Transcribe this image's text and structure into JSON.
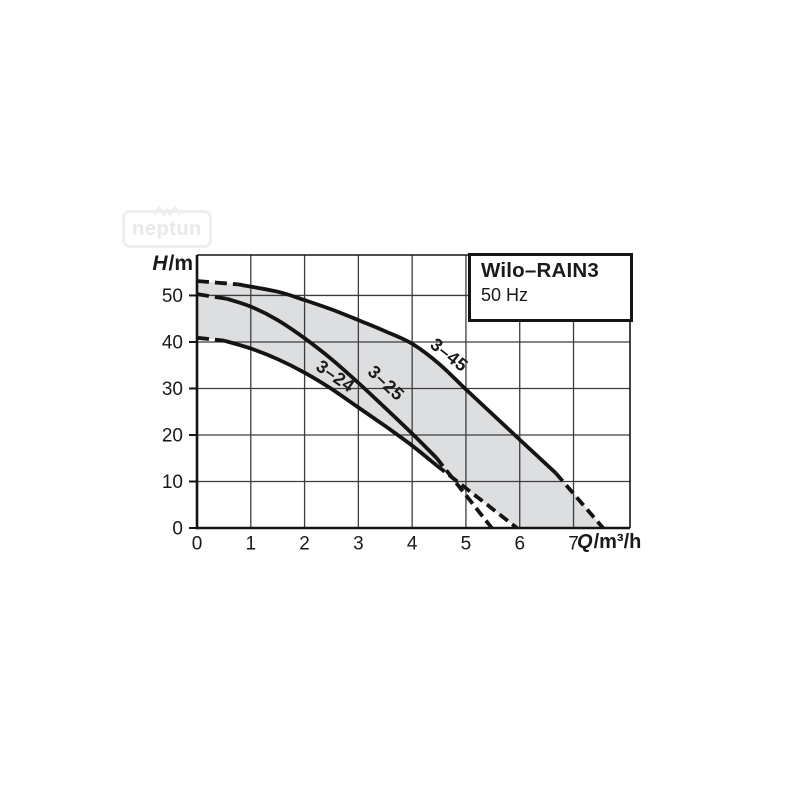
{
  "watermark": {
    "text": "neptun"
  },
  "title_box": {
    "title": "Wilo–RAIN3",
    "subtitle": "50 Hz"
  },
  "axes": {
    "y_var": "H",
    "y_unit": "/m",
    "x_var": "Q",
    "x_unit": "/m³/h"
  },
  "chart_data": {
    "type": "line",
    "title": "Wilo–RAIN3",
    "subtitle": "50 Hz",
    "xlabel": "Q/m³/h",
    "ylabel": "H/m",
    "xlim": [
      0,
      8.05
    ],
    "ylim": [
      0,
      58.7
    ],
    "x_ticks": [
      0,
      1,
      2,
      3,
      4,
      5,
      6,
      7
    ],
    "y_ticks": [
      0,
      10,
      20,
      30,
      40,
      50
    ],
    "grid": true,
    "legend_position": "none",
    "colors": {
      "curve": "#141414",
      "grid": "#3d3d3f",
      "frame": "#141414",
      "band_fill": "#dcdee0",
      "text": "#1a1a1a"
    },
    "band": {
      "upper_series": "3–45",
      "lower_series": "3–24"
    },
    "series": [
      {
        "name": "3–24",
        "label_pos": [
          2.51,
          31.6
        ],
        "label_angle": 35,
        "dash_start": [
          [
            0,
            40.9
          ],
          [
            0.5,
            40.3
          ]
        ],
        "solid": [
          [
            0.5,
            40.3
          ],
          [
            1,
            38.6
          ],
          [
            1.5,
            36.3
          ],
          [
            2,
            33.4
          ],
          [
            2.5,
            29.9
          ],
          [
            3,
            25.9
          ],
          [
            3.5,
            21.9
          ],
          [
            4,
            17.7
          ],
          [
            4.45,
            13.5
          ]
        ],
        "dash_end": [
          [
            4.45,
            13.5
          ],
          [
            5.95,
            0
          ]
        ]
      },
      {
        "name": "3–25",
        "label_pos": [
          3.44,
          30.2
        ],
        "label_angle": 43,
        "dash_start": [
          [
            0,
            50.3
          ],
          [
            0.55,
            49.3
          ]
        ],
        "solid": [
          [
            0.55,
            49.3
          ],
          [
            1,
            47.6
          ],
          [
            1.5,
            44.7
          ],
          [
            2,
            40.8
          ],
          [
            2.5,
            36.3
          ],
          [
            3,
            31.2
          ],
          [
            3.5,
            25.8
          ],
          [
            4,
            20.3
          ],
          [
            4.45,
            15.1
          ]
        ],
        "dash_end": [
          [
            4.45,
            15.1
          ],
          [
            5.48,
            0
          ]
        ]
      },
      {
        "name": "3–45",
        "label_pos": [
          4.62,
          36.2
        ],
        "label_angle": 38,
        "dash_start": [
          [
            0,
            53.1
          ],
          [
            0.75,
            52.4
          ]
        ],
        "solid": [
          [
            0.75,
            52.4
          ],
          [
            1.5,
            50.8
          ],
          [
            2,
            49.0
          ],
          [
            2.5,
            47.0
          ],
          [
            3,
            44.7
          ],
          [
            3.5,
            42.3
          ],
          [
            4,
            39.6
          ],
          [
            4.5,
            35.3
          ],
          [
            5,
            29.8
          ],
          [
            5.5,
            24.4
          ],
          [
            6,
            19.0
          ],
          [
            6.67,
            11.8
          ]
        ],
        "dash_end": [
          [
            6.67,
            11.8
          ],
          [
            7.55,
            0
          ]
        ]
      }
    ]
  }
}
